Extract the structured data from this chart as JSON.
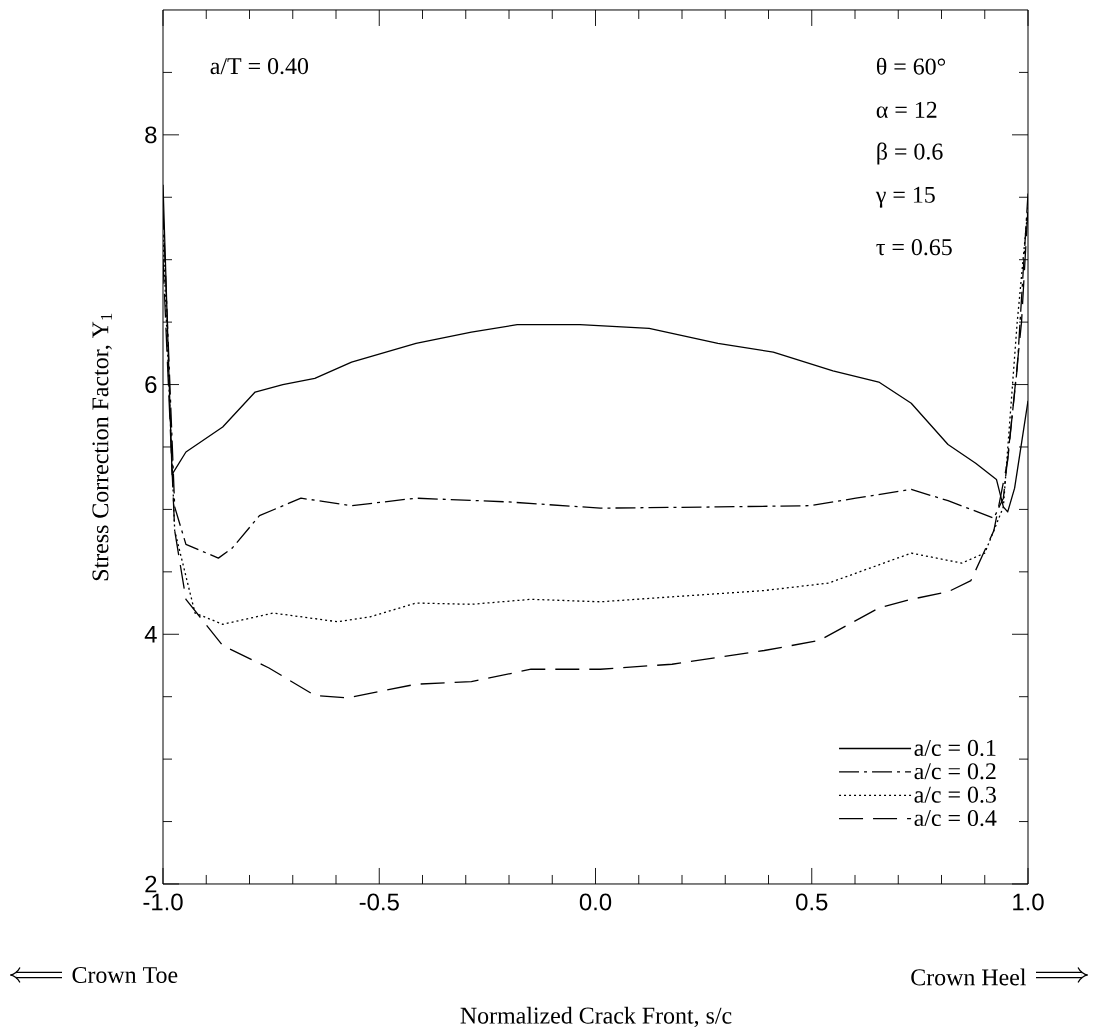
{
  "chart_data": {
    "type": "line",
    "xlabel": "Normalized Crack Front, s/c",
    "ylabel": "Stress Correction Factor, Y$_{1}$",
    "annotations": [
      "a/T = 0.40",
      "θ = 60°",
      "α = 12",
      "β = 0.6",
      "γ = 15",
      "τ = 0.65",
      "Crown Toe",
      "Crown Heel"
    ],
    "xlim": [
      -1,
      1
    ],
    "ylim": [
      2,
      9
    ],
    "xticks": [
      {
        "value": -1,
        "label": "-1.0"
      },
      {
        "value": -0.9,
        "label": null
      },
      {
        "value": -0.8,
        "label": null
      },
      {
        "value": -0.7,
        "label": null
      },
      {
        "value": -0.6,
        "label": null
      },
      {
        "value": -0.5,
        "label": "-0.5"
      },
      {
        "value": -0.4,
        "label": null
      },
      {
        "value": -0.3,
        "label": null
      },
      {
        "value": -0.2,
        "label": null
      },
      {
        "value": -0.1,
        "label": null
      },
      {
        "value": 0,
        "label": "0.0"
      },
      {
        "value": 0.1,
        "label": null
      },
      {
        "value": 0.2,
        "label": null
      },
      {
        "value": 0.3,
        "label": null
      },
      {
        "value": 0.4,
        "label": null
      },
      {
        "value": 0.5,
        "label": "0.5"
      },
      {
        "value": 0.6,
        "label": null
      },
      {
        "value": 0.7,
        "label": null
      },
      {
        "value": 0.8,
        "label": null
      },
      {
        "value": 0.9,
        "label": null
      },
      {
        "value": 1,
        "label": "1.0"
      }
    ],
    "yticks": [
      2,
      {
        "value": 2.5,
        "label": null
      },
      {
        "value": 3,
        "label": null
      },
      {
        "value": 3.5,
        "label": null
      },
      4,
      {
        "value": 4.5,
        "label": null
      },
      {
        "value": 5,
        "label": null
      },
      {
        "value": 5.5,
        "label": null
      },
      6,
      {
        "value": 6.5,
        "label": null
      },
      {
        "value": 7,
        "label": null
      },
      {
        "value": 7.5,
        "label": null
      },
      8,
      {
        "value": 8.5,
        "label": null
      }
    ],
    "legend": "bottom right",
    "series": [
      {
        "name": "a/c = 0.1",
        "color": "#000000",
        "line_style": "solid",
        "x": [
          -1.0,
          -0.979,
          -0.947,
          -0.862,
          -0.787,
          -0.723,
          -0.649,
          -0.564,
          -0.415,
          -0.287,
          -0.181,
          -0.036,
          0.124,
          0.283,
          0.411,
          0.549,
          0.655,
          0.73,
          0.815,
          0.879,
          0.927,
          0.943,
          0.953,
          0.969,
          1.0
        ],
        "values": [
          7.6,
          5.28,
          5.46,
          5.66,
          5.94,
          6.0,
          6.05,
          6.18,
          6.33,
          6.42,
          6.48,
          6.48,
          6.45,
          6.33,
          6.26,
          6.11,
          6.02,
          5.85,
          5.52,
          5.37,
          5.24,
          5.02,
          4.98,
          5.17,
          5.87
        ]
      },
      {
        "name": "a/c = 0.2",
        "color": "#000000",
        "line_style": "dashdot",
        "x": [
          -1.0,
          -0.973,
          -0.947,
          -0.872,
          -0.84,
          -0.777,
          -0.681,
          -0.564,
          -0.415,
          -0.202,
          0.011,
          0.283,
          0.496,
          0.602,
          0.73,
          0.815,
          0.921,
          0.943,
          0.975,
          1.0
        ],
        "values": [
          7.4,
          5.02,
          4.72,
          4.61,
          4.69,
          4.95,
          5.09,
          5.03,
          5.09,
          5.06,
          5.01,
          5.02,
          5.03,
          5.09,
          5.16,
          5.07,
          4.93,
          5.09,
          6.13,
          7.53
        ]
      },
      {
        "name": "a/c = 0.3",
        "color": "#000000",
        "line_style": "dotted",
        "x": [
          -1.0,
          -0.973,
          -0.926,
          -0.862,
          -0.745,
          -0.596,
          -0.521,
          -0.415,
          -0.287,
          -0.149,
          0.011,
          0.177,
          0.39,
          0.539,
          0.73,
          0.847,
          0.9,
          0.943,
          0.975,
          1.0
        ],
        "values": [
          7.2,
          4.83,
          4.17,
          4.08,
          4.17,
          4.1,
          4.14,
          4.25,
          4.24,
          4.28,
          4.26,
          4.3,
          4.35,
          4.41,
          4.65,
          4.57,
          4.65,
          5.02,
          6.5,
          7.42
        ]
      },
      {
        "name": "a/c = 0.4",
        "color": "#000000",
        "line_style": "dashed",
        "x": [
          -1.0,
          -0.973,
          -0.947,
          -0.862,
          -0.755,
          -0.649,
          -0.574,
          -0.415,
          -0.287,
          -0.149,
          0.011,
          0.177,
          0.39,
          0.517,
          0.655,
          0.73,
          0.815,
          0.868,
          0.921,
          0.953,
          0.985,
          1.0
        ],
        "values": [
          7.0,
          4.83,
          4.28,
          3.91,
          3.73,
          3.51,
          3.49,
          3.6,
          3.62,
          3.72,
          3.72,
          3.76,
          3.87,
          3.95,
          4.21,
          4.28,
          4.34,
          4.43,
          4.83,
          5.39,
          6.5,
          7.42
        ]
      }
    ]
  }
}
